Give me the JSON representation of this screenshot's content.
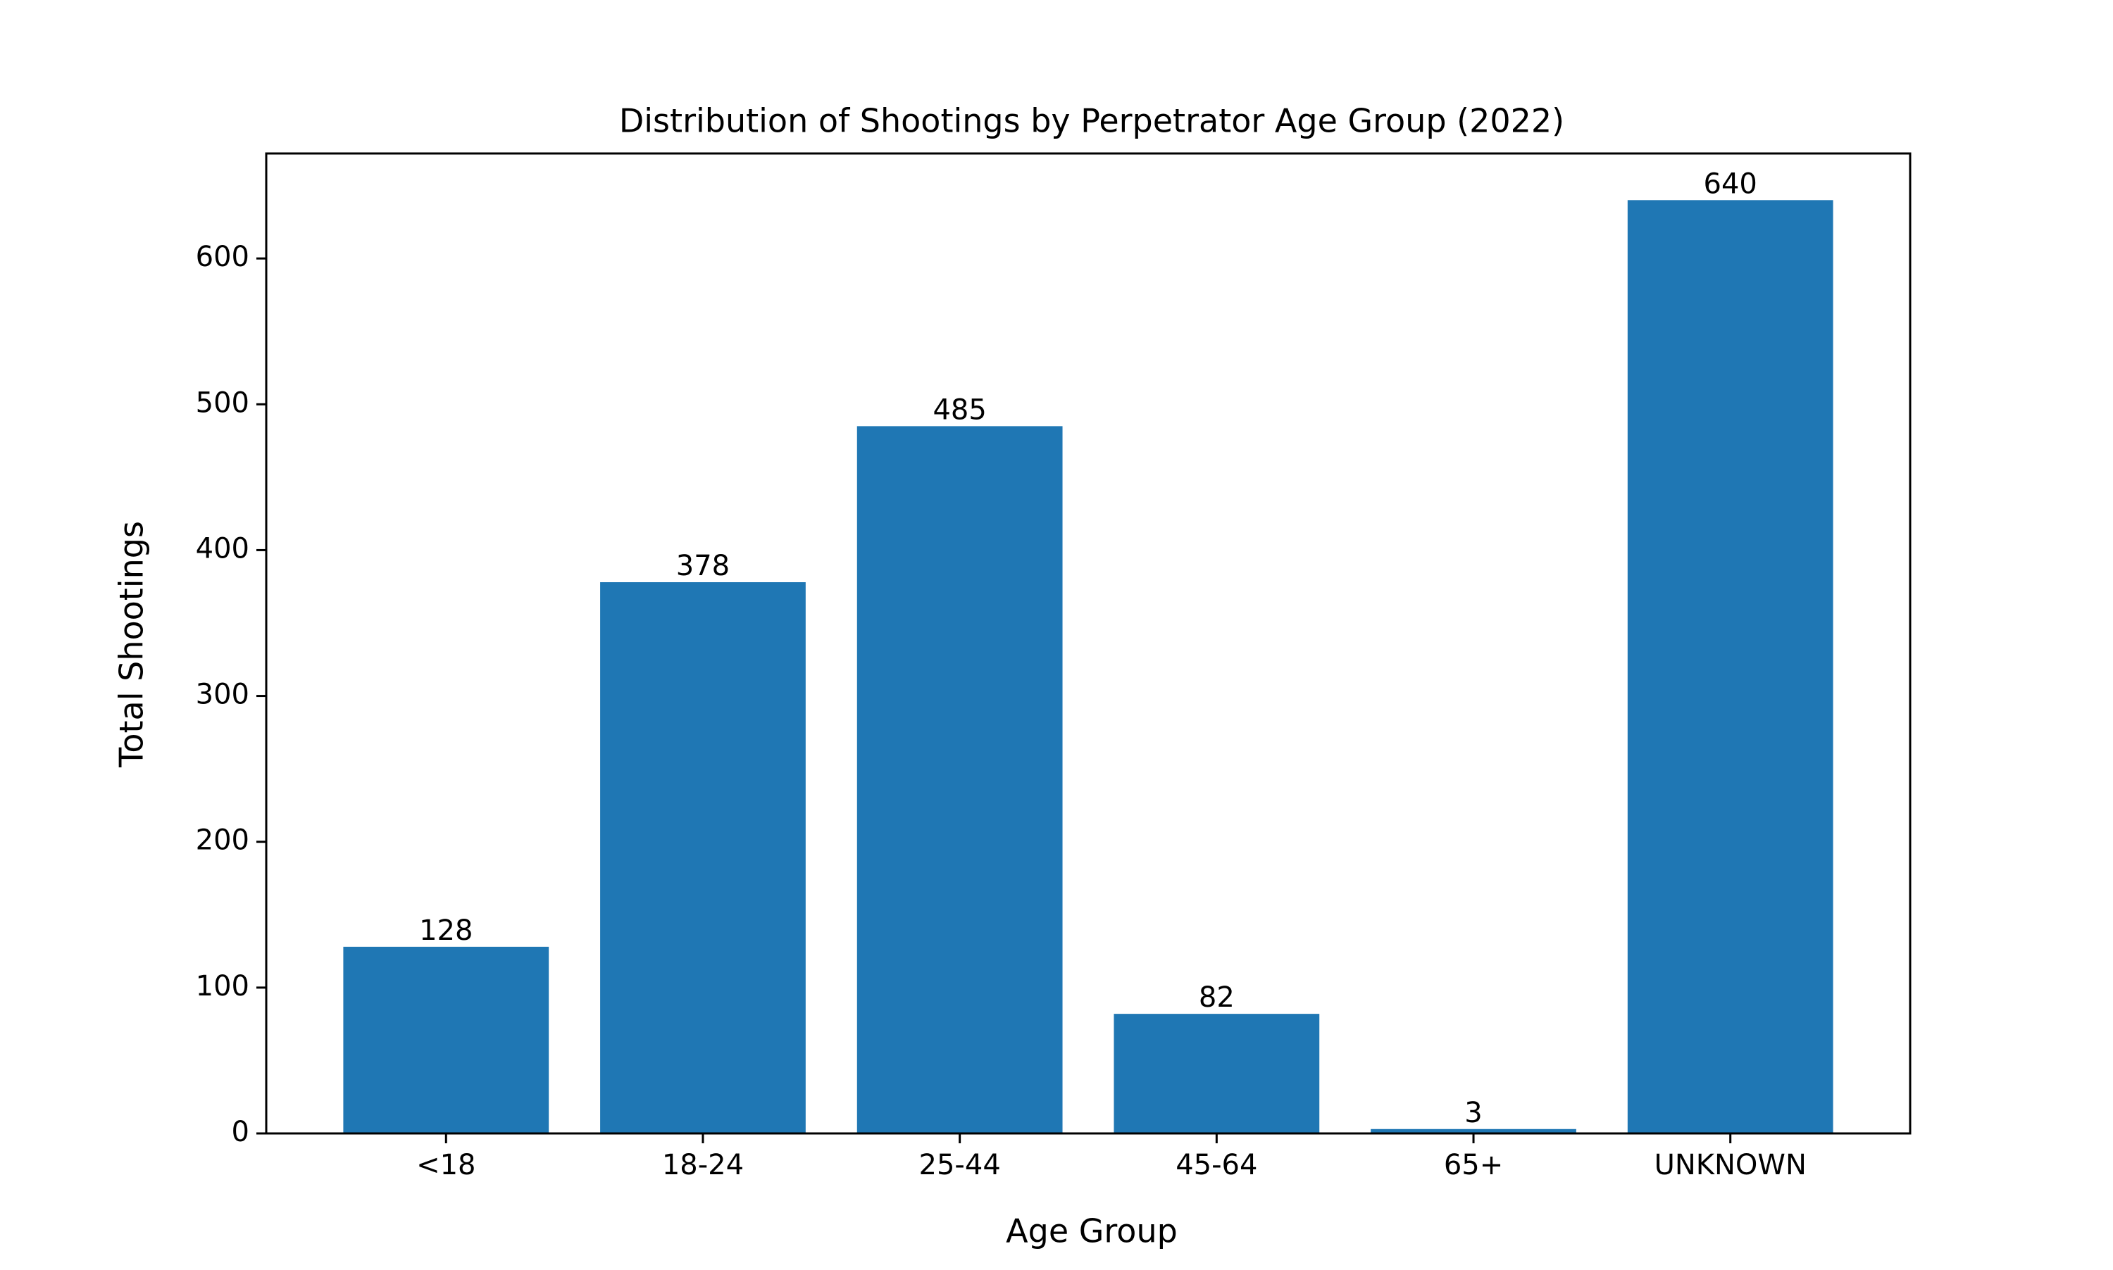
{
  "chart_data": {
    "type": "bar",
    "title": "Distribution of Shootings by Perpetrator Age Group (2022)",
    "xlabel": "Age Group",
    "ylabel": "Total Shootings",
    "categories": [
      "<18",
      "18-24",
      "25-44",
      "45-64",
      "65+",
      "UNKNOWN"
    ],
    "values": [
      128,
      378,
      485,
      82,
      3,
      640
    ],
    "data_labels": [
      "128",
      "378",
      "485",
      "82",
      "3",
      "640"
    ],
    "ylim": [
      0,
      672
    ],
    "yticks": [
      0,
      100,
      200,
      300,
      400,
      500,
      600
    ],
    "grid": false,
    "legend": "none",
    "bar_color": "#1f77b4"
  }
}
